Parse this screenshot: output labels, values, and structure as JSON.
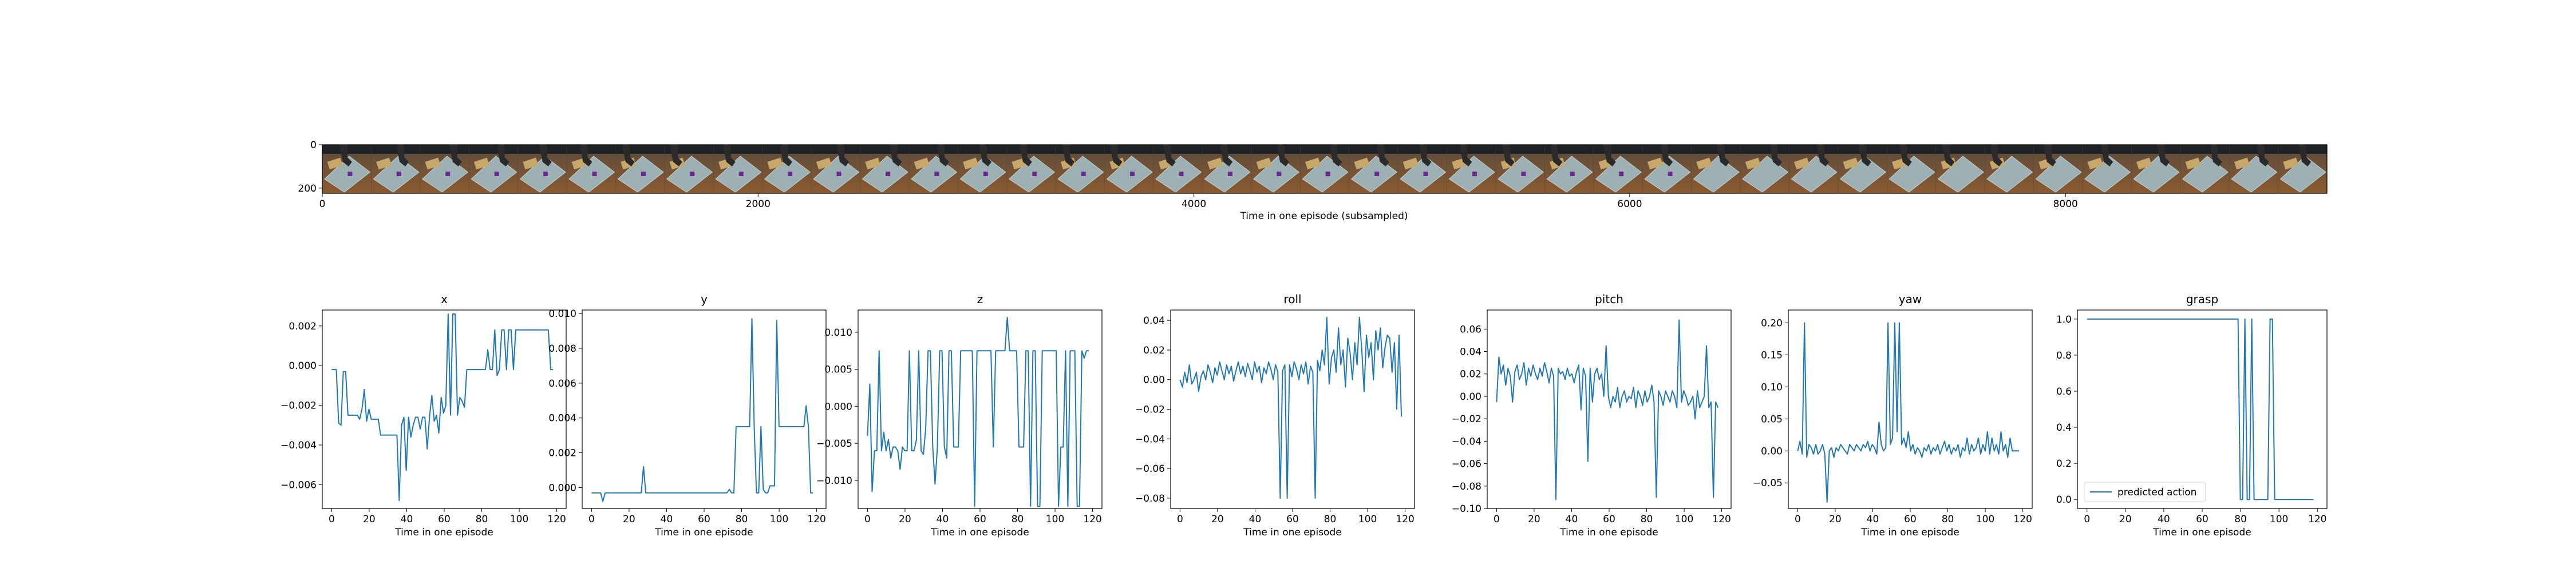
{
  "filmstrip": {
    "xlabel": "Time in one episode (subsampled)",
    "x_ticks": [
      0,
      2000,
      4000,
      6000,
      8000
    ],
    "x_range": [
      0,
      9200
    ],
    "y_ticks": [
      0,
      200
    ],
    "y_range": [
      0,
      224
    ],
    "frames": 41
  },
  "chart_data": [
    {
      "type": "line",
      "title": "x",
      "xlabel": "Time in one episode",
      "xlim": [
        -5,
        125
      ],
      "ylim": [
        -0.0072,
        0.0028
      ],
      "xticks": [
        0,
        20,
        40,
        60,
        80,
        100,
        120
      ],
      "yticks": [
        -0.006,
        -0.004,
        -0.002,
        0.0,
        0.002
      ],
      "ytick_labels": [
        "−0.006",
        "−0.004",
        "−0.002",
        "0.000",
        "0.002"
      ],
      "series": [
        {
          "values": [
            -0.0002,
            -0.0002,
            -0.0002,
            -0.0029,
            -0.003,
            -0.0003,
            -0.0003,
            -0.0025,
            -0.0025,
            -0.0025,
            -0.0025,
            -0.0025,
            -0.0027,
            -0.0022,
            -0.0012,
            -0.0028,
            -0.0022,
            -0.0027,
            -0.0027,
            -0.0027,
            -0.0027,
            -0.0035,
            -0.0035,
            -0.0035,
            -0.0035,
            -0.0035,
            -0.0035,
            -0.0035,
            -0.0035,
            -0.0068,
            -0.003,
            -0.0026,
            -0.0053,
            -0.0026,
            -0.0036,
            -0.003,
            -0.0026,
            -0.0026,
            -0.0032,
            -0.0026,
            -0.0026,
            -0.0042,
            -0.0026,
            -0.0015,
            -0.0028,
            -0.0025,
            -0.0034,
            -0.0016,
            -0.0024,
            -0.002,
            0.0026,
            -0.0025,
            0.0026,
            0.0026,
            -0.0025,
            -0.0016,
            -0.0018,
            -0.0021,
            -0.0002,
            -0.0002,
            -0.0002,
            -0.0002,
            -0.0002,
            -0.0002,
            -0.0002,
            -0.0002,
            -0.0002,
            0.0008,
            -0.0002,
            -0.0002,
            0.0018,
            -0.0005,
            -0.0002,
            0.0018,
            0.0018,
            -0.0002,
            0.0018,
            0.0018,
            -0.0002,
            0.0018,
            0.0018,
            0.0018,
            0.0018,
            0.0018,
            0.0018,
            0.0018,
            0.0018,
            0.0018,
            0.0018,
            0.0018,
            0.0018,
            0.0018,
            0.0018,
            0.0018,
            -0.0002,
            -0.0002
          ]
        }
      ]
    },
    {
      "type": "line",
      "title": "y",
      "xlabel": "Time in one episode",
      "xlim": [
        -5,
        125
      ],
      "ylim": [
        -0.0012,
        0.0102
      ],
      "xticks": [
        0,
        20,
        40,
        60,
        80,
        100,
        120
      ],
      "yticks": [
        0.0,
        0.002,
        0.004,
        0.006,
        0.008,
        0.01
      ],
      "ytick_labels": [
        "0.000",
        "0.002",
        "0.004",
        "0.006",
        "0.008",
        "0.010"
      ],
      "series": [
        {
          "values": [
            -0.0003,
            -0.0003,
            -0.0003,
            -0.0003,
            -0.0003,
            -0.0008,
            -0.0003,
            -0.0003,
            -0.0003,
            -0.0003,
            -0.0003,
            -0.0003,
            -0.0003,
            -0.0003,
            -0.0003,
            -0.0003,
            -0.0003,
            -0.0003,
            -0.0003,
            -0.0003,
            -0.0003,
            -0.0003,
            -0.0003,
            0.0012,
            -0.0003,
            -0.0003,
            -0.0003,
            -0.0003,
            -0.0003,
            -0.0003,
            -0.0003,
            -0.0003,
            -0.0003,
            -0.0003,
            -0.0003,
            -0.0003,
            -0.0003,
            -0.0003,
            -0.0003,
            -0.0003,
            -0.0003,
            -0.0003,
            -0.0003,
            -0.0003,
            -0.0003,
            -0.0003,
            -0.0003,
            -0.0003,
            -0.0003,
            -0.0003,
            -0.0003,
            -0.0003,
            -0.0003,
            -0.0003,
            -0.0003,
            -0.0003,
            -0.0003,
            -0.0003,
            -0.0003,
            -0.0003,
            -0.0003,
            -0.0001,
            -0.0003,
            -0.0003,
            0.0035,
            0.0035,
            0.0035,
            0.0035,
            0.0035,
            0.0035,
            0.0035,
            0.0097,
            0.0035,
            -0.0003,
            -0.0003,
            0.0035,
            -0.0001,
            -0.0003,
            -0.0003,
            0.0001,
            0.0001,
            0.0001,
            0.0096,
            0.0035,
            0.0035,
            0.0035,
            0.0035,
            0.0035,
            0.0035,
            0.0035,
            0.0035,
            0.0035,
            0.0035,
            0.0035,
            0.0035,
            0.0047,
            0.0035,
            -0.0003,
            -0.0003
          ]
        }
      ]
    },
    {
      "type": "line",
      "title": "z",
      "xlabel": "Time in one episode",
      "xlim": [
        -5,
        125
      ],
      "ylim": [
        -0.0138,
        0.013
      ],
      "xticks": [
        0,
        20,
        40,
        60,
        80,
        100,
        120
      ],
      "yticks": [
        -0.01,
        -0.005,
        0.0,
        0.005,
        0.01
      ],
      "ytick_labels": [
        "−0.010",
        "−0.005",
        "0.000",
        "0.005",
        "0.010"
      ],
      "series": [
        {
          "values": [
            -0.004,
            0.003,
            -0.0115,
            -0.006,
            -0.006,
            0.0075,
            -0.006,
            -0.0035,
            -0.006,
            -0.0045,
            -0.007,
            -0.0055,
            -0.0055,
            -0.006,
            -0.0085,
            -0.0055,
            -0.006,
            -0.006,
            0.0075,
            -0.006,
            -0.006,
            -0.0045,
            0.0075,
            -0.006,
            -0.0065,
            -0.003,
            0.0075,
            0.0075,
            -0.0055,
            -0.0105,
            -0.0055,
            0.0075,
            0.0075,
            -0.0055,
            -0.007,
            0.0075,
            0.0075,
            -0.0055,
            -0.0055,
            -0.0055,
            0.0075,
            0.0075,
            0.0075,
            0.0075,
            0.0075,
            0.0075,
            -0.0135,
            0.0075,
            0.0075,
            0.0075,
            0.0075,
            0.0075,
            0.0075,
            0.0075,
            -0.0055,
            0.0075,
            0.0075,
            0.0075,
            0.0075,
            0.0075,
            0.012,
            0.0075,
            0.0075,
            0.0075,
            0.0075,
            -0.0055,
            -0.0055,
            -0.0055,
            0.0075,
            0.0075,
            -0.0135,
            0.0075,
            0.0075,
            -0.0135,
            -0.0135,
            0.0075,
            0.0075,
            0.0075,
            0.0075,
            0.0075,
            0.0075,
            0.0075,
            -0.0135,
            -0.0055,
            -0.0055,
            0.0075,
            -0.0135,
            0.0075,
            0.0075,
            0.0075,
            -0.0135,
            -0.0135,
            0.0075,
            0.0065,
            0.0075,
            0.0075
          ]
        }
      ]
    },
    {
      "type": "line",
      "title": "roll",
      "xlabel": "Time in one episode",
      "xlim": [
        -5,
        125
      ],
      "ylim": [
        -0.087,
        0.047
      ],
      "xticks": [
        0,
        20,
        40,
        60,
        80,
        100,
        120
      ],
      "yticks": [
        -0.08,
        -0.06,
        -0.04,
        -0.02,
        0.0,
        0.02,
        0.04
      ],
      "ytick_labels": [
        "−0.08",
        "−0.06",
        "−0.04",
        "−0.02",
        "0.00",
        "0.02",
        "0.04"
      ],
      "series": [
        {
          "values": [
            0.0,
            -0.005,
            0.005,
            -0.002,
            0.01,
            -0.003,
            0.0,
            0.005,
            -0.008,
            0.002,
            0.006,
            0.0,
            0.01,
            0.005,
            -0.002,
            0.008,
            0.003,
            0.012,
            0.006,
            0.0,
            0.01,
            0.004,
            0.009,
            -0.001,
            0.006,
            0.012,
            0.004,
            0.009,
            0.002,
            0.011,
            0.006,
            0.0,
            0.012,
            0.005,
            0.009,
            -0.002,
            0.008,
            0.004,
            0.012,
            0.007,
            0.0,
            0.01,
            0.005,
            -0.08,
            0.006,
            0.01,
            -0.08,
            0.01,
            0.002,
            0.012,
            0.007,
            0.0,
            0.01,
            0.004,
            0.012,
            -0.003,
            0.009,
            0.005,
            -0.08,
            0.013,
            0.006,
            0.02,
            0.01,
            0.042,
            -0.003,
            0.015,
            0.02,
            0.005,
            0.035,
            0.01,
            0.02,
            -0.005,
            0.028,
            0.018,
            0.0,
            0.025,
            0.01,
            0.042,
            0.02,
            -0.008,
            0.03,
            0.015,
            0.025,
            0.0,
            0.033,
            0.02,
            0.035,
            0.008,
            0.022,
            0.03,
            0.028,
            0.005,
            0.025,
            -0.02,
            0.03,
            -0.025
          ]
        }
      ]
    },
    {
      "type": "line",
      "title": "pitch",
      "xlabel": "Time in one episode",
      "xlim": [
        -5,
        125
      ],
      "ylim": [
        -0.1,
        0.077
      ],
      "xticks": [
        0,
        20,
        40,
        60,
        80,
        100,
        120
      ],
      "yticks": [
        -0.1,
        -0.08,
        -0.06,
        -0.04,
        -0.02,
        0.0,
        0.02,
        0.04,
        0.06
      ],
      "ytick_labels": [
        "−0.10",
        "−0.08",
        "−0.06",
        "−0.04",
        "−0.02",
        "0.00",
        "0.02",
        "0.04",
        "0.06"
      ],
      "series": [
        {
          "values": [
            -0.005,
            0.035,
            0.02,
            0.028,
            0.01,
            0.025,
            0.018,
            -0.005,
            0.022,
            0.028,
            0.015,
            0.02,
            0.03,
            0.01,
            0.025,
            0.018,
            0.028,
            0.02,
            0.015,
            0.025,
            0.018,
            0.03,
            0.022,
            0.012,
            0.025,
            0.018,
            -0.092,
            0.025,
            0.02,
            0.022,
            0.015,
            0.025,
            0.018,
            0.02,
            0.012,
            0.022,
            0.028,
            -0.012,
            0.025,
            0.018,
            -0.058,
            0.025,
            -0.005,
            0.02,
            0.025,
            0.015,
            0.02,
            0.0,
            0.045,
            0.0,
            -0.01,
            0.0,
            -0.005,
            0.008,
            -0.01,
            0.0,
            0.005,
            -0.005,
            0.0,
            -0.002,
            0.008,
            -0.01,
            0.005,
            0.0,
            -0.008,
            0.005,
            -0.005,
            0.0,
            0.01,
            -0.005,
            -0.09,
            0.005,
            0.0,
            -0.008,
            0.005,
            0.0,
            -0.005,
            0.005,
            0.0,
            -0.01,
            0.068,
            -0.005,
            0.005,
            0.0,
            -0.008,
            -0.005,
            0.0,
            -0.02,
            0.005,
            -0.01,
            -0.005,
            0.0,
            0.045,
            -0.01,
            -0.005,
            -0.09,
            -0.005,
            -0.01
          ]
        }
      ]
    },
    {
      "type": "line",
      "title": "yaw",
      "xlabel": "Time in one episode",
      "xlim": [
        -5,
        125
      ],
      "ylim": [
        -0.09,
        0.22
      ],
      "xticks": [
        0,
        20,
        40,
        60,
        80,
        100,
        120
      ],
      "yticks": [
        -0.05,
        0.0,
        0.05,
        0.1,
        0.15,
        0.2
      ],
      "ytick_labels": [
        "−0.05",
        "0.00",
        "0.05",
        "0.10",
        "0.15",
        "0.20"
      ],
      "series": [
        {
          "values": [
            0.0,
            0.015,
            -0.005,
            0.2,
            -0.01,
            0.01,
            0.005,
            -0.005,
            0.01,
            -0.005,
            0.0,
            0.01,
            -0.005,
            -0.08,
            0.0,
            0.005,
            -0.01,
            0.005,
            0.0,
            0.01,
            0.005,
            0.0,
            -0.005,
            0.01,
            0.005,
            0.0,
            0.01,
            0.005,
            0.0,
            0.01,
            0.005,
            0.015,
            0.0,
            0.01,
            0.005,
            -0.005,
            0.045,
            0.01,
            0.0,
            0.005,
            0.2,
            0.01,
            0.02,
            0.2,
            0.03,
            0.2,
            0.01,
            0.02,
            0.005,
            0.03,
            0.0,
            0.01,
            -0.005,
            0.005,
            0.0,
            -0.01,
            0.005,
            0.0,
            0.01,
            -0.005,
            0.005,
            0.0,
            0.01,
            -0.005,
            0.005,
            0.015,
            0.0,
            0.01,
            -0.005,
            0.005,
            0.0,
            0.01,
            -0.01,
            0.005,
            0.0,
            0.02,
            -0.005,
            0.01,
            0.0,
            0.005,
            0.02,
            -0.005,
            0.01,
            0.0,
            0.03,
            -0.005,
            0.02,
            0.0,
            0.01,
            -0.005,
            0.03,
            0.0,
            0.01,
            -0.01,
            0.02,
            0.0,
            0.0,
            0.0,
            0.0
          ]
        }
      ]
    },
    {
      "type": "line",
      "title": "grasp",
      "xlabel": "Time in one episode",
      "xlim": [
        -5,
        125
      ],
      "ylim": [
        -0.05,
        1.05
      ],
      "xticks": [
        0,
        20,
        40,
        60,
        80,
        100,
        120
      ],
      "yticks": [
        0.0,
        0.2,
        0.4,
        0.6,
        0.8,
        1.0
      ],
      "ytick_labels": [
        "0.0",
        "0.2",
        "0.4",
        "0.6",
        "0.8",
        "1.0"
      ],
      "legend": "lower-left",
      "series": [
        {
          "name": "predicted action",
          "values": [
            1,
            1,
            1,
            1,
            1,
            1,
            1,
            1,
            1,
            1,
            1,
            1,
            1,
            1,
            1,
            1,
            1,
            1,
            1,
            1,
            1,
            1,
            1,
            1,
            1,
            1,
            1,
            1,
            1,
            1,
            1,
            1,
            1,
            1,
            1,
            1,
            1,
            1,
            1,
            1,
            1,
            1,
            1,
            1,
            1,
            1,
            1,
            1,
            1,
            1,
            1,
            1,
            1,
            1,
            1,
            1,
            1,
            1,
            1,
            1,
            1,
            1,
            1,
            1,
            1,
            1,
            1,
            0,
            0,
            1,
            0,
            0,
            1,
            0,
            0,
            0,
            0,
            0,
            0,
            0,
            1,
            1,
            0,
            0,
            0,
            0,
            0,
            0,
            0,
            0,
            0,
            0,
            0,
            0,
            0,
            0,
            0,
            0,
            0,
            0
          ]
        }
      ]
    }
  ]
}
